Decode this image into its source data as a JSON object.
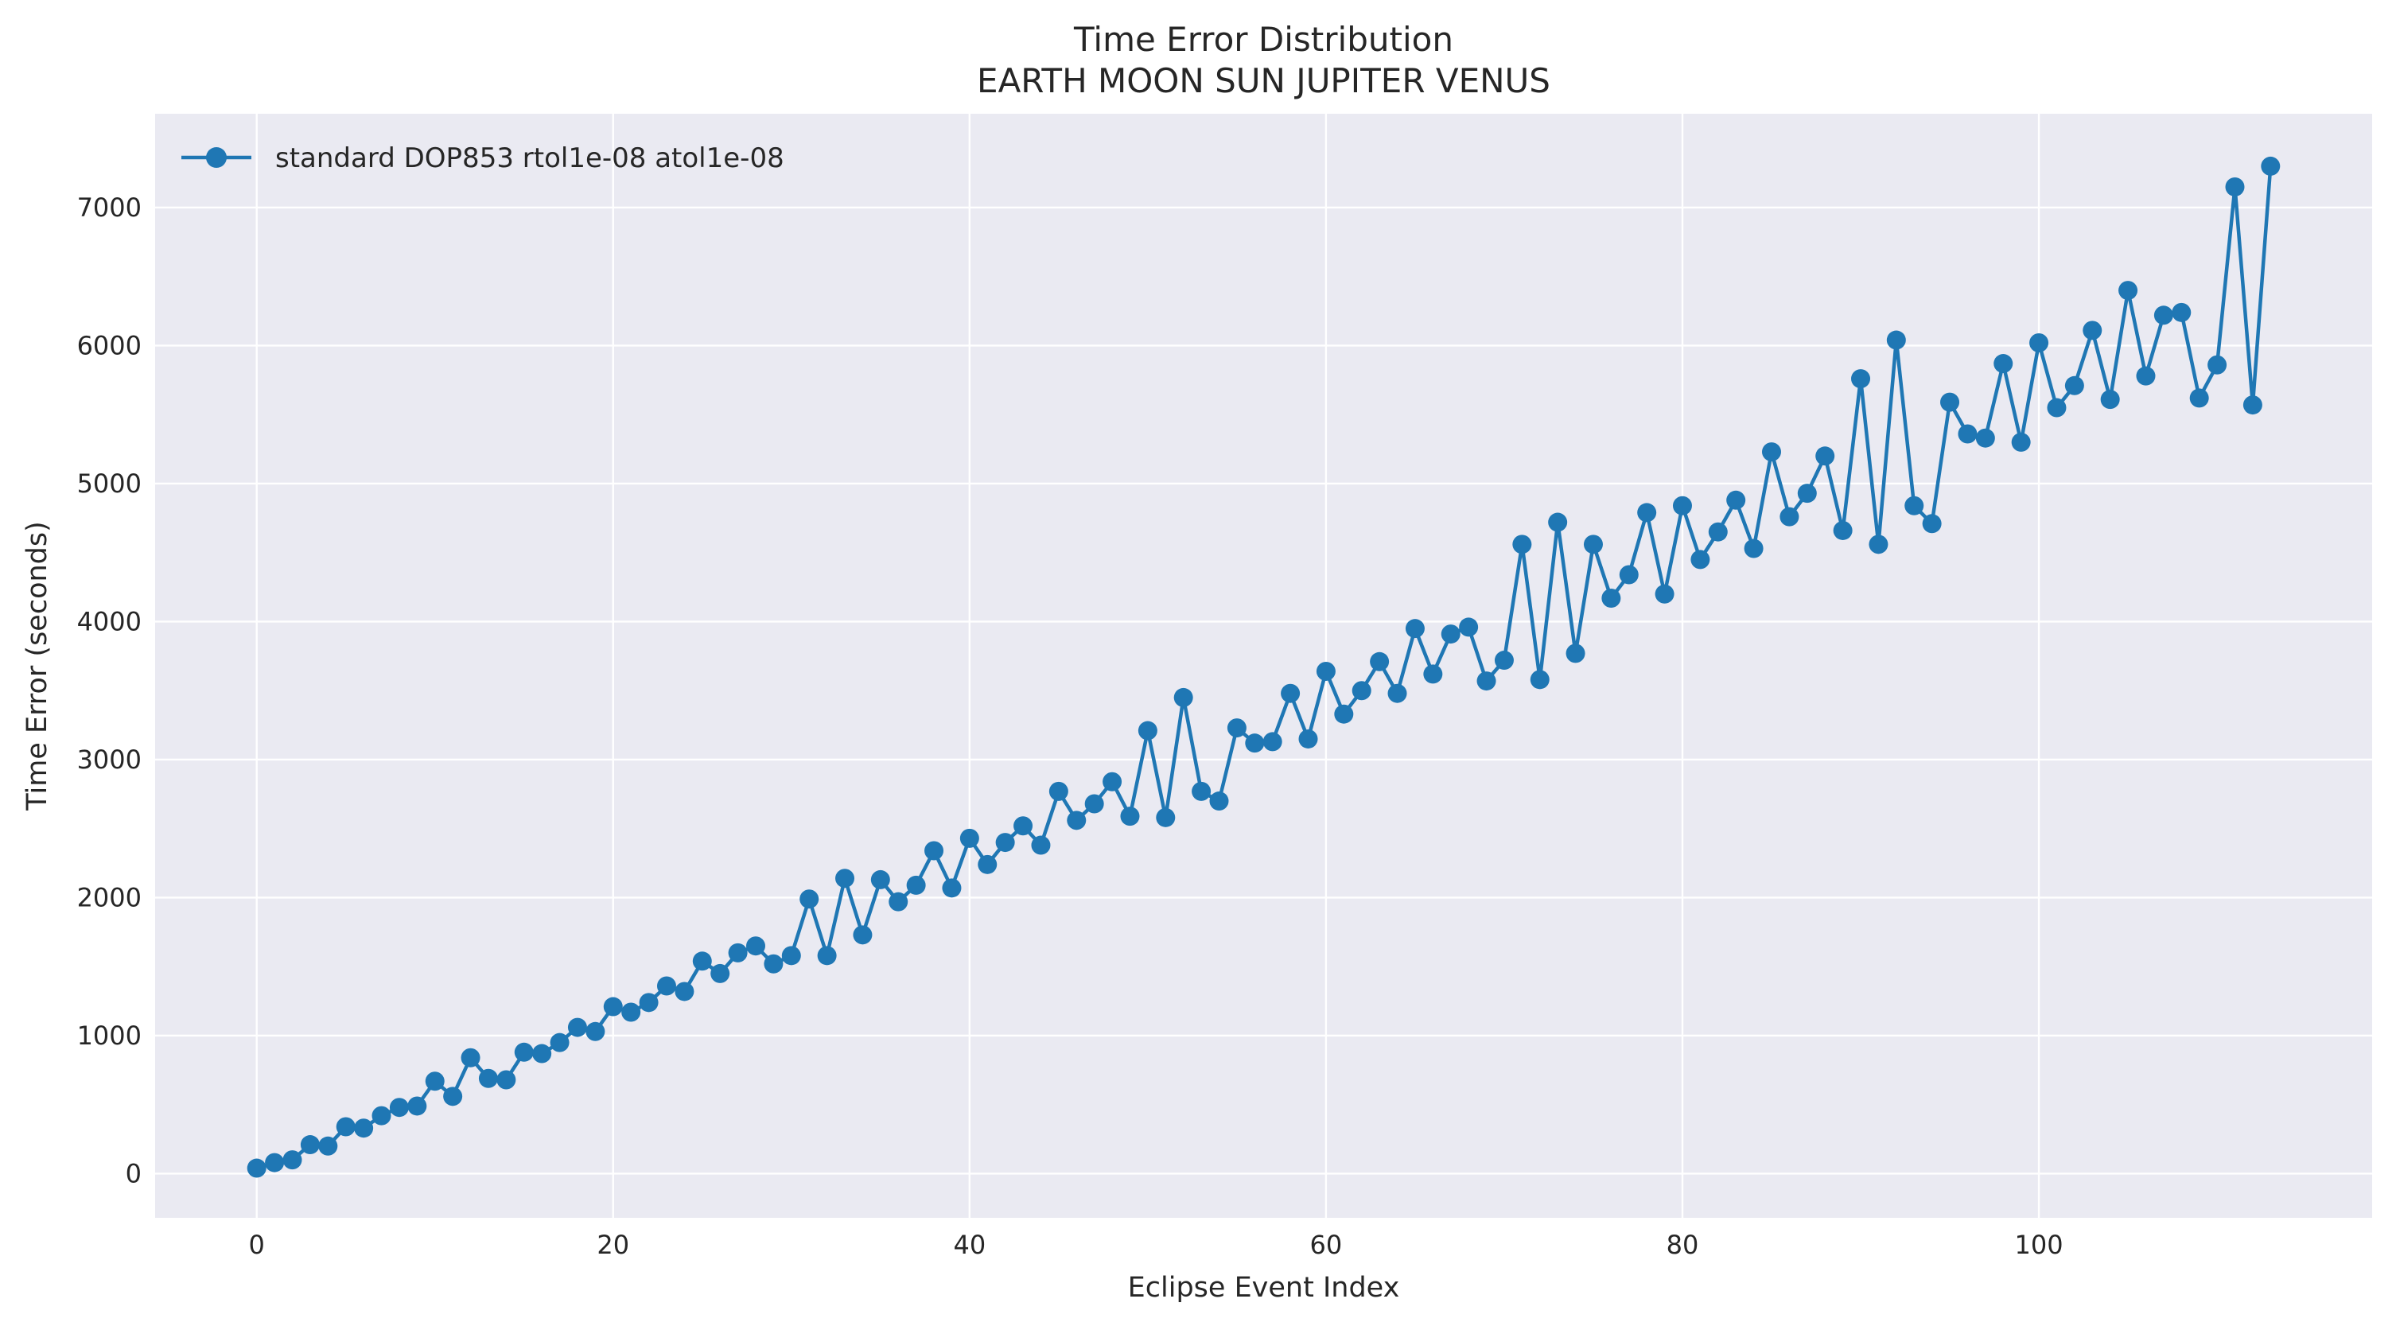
{
  "chart_data": {
    "type": "line",
    "title": "Time Error Distribution",
    "subtitle": "EARTH MOON SUN JUPITER VENUS",
    "xlabel": "Eclipse Event Index",
    "ylabel": "Time Error (seconds)",
    "xlim": [
      -5.7,
      118.7
    ],
    "ylim": [
      -320,
      7680
    ],
    "xticks": [
      0,
      20,
      40,
      60,
      80,
      100
    ],
    "yticks": [
      0,
      1000,
      2000,
      3000,
      4000,
      5000,
      6000,
      7000
    ],
    "grid": true,
    "legend_position": "top-left",
    "colors": {
      "series": "#1f77b4",
      "plot_background": "#eaeaf2",
      "grid": "#ffffff"
    },
    "series": [
      {
        "name": "standard DOP853 rtol1e-08 atol1e-08",
        "marker": "circle",
        "x": [
          0,
          1,
          2,
          3,
          4,
          5,
          6,
          7,
          8,
          9,
          10,
          11,
          12,
          13,
          14,
          15,
          16,
          17,
          18,
          19,
          20,
          21,
          22,
          23,
          24,
          25,
          26,
          27,
          28,
          29,
          30,
          31,
          32,
          33,
          34,
          35,
          36,
          37,
          38,
          39,
          40,
          41,
          42,
          43,
          44,
          45,
          46,
          47,
          48,
          49,
          50,
          51,
          52,
          53,
          54,
          55,
          56,
          57,
          58,
          59,
          60,
          61,
          62,
          63,
          64,
          65,
          66,
          67,
          68,
          69,
          70,
          71,
          72,
          73,
          74,
          75,
          76,
          77,
          78,
          79,
          80,
          81,
          82,
          83,
          84,
          85,
          86,
          87,
          88,
          89,
          90,
          91,
          92,
          93,
          94,
          95,
          96,
          97,
          98,
          99,
          100,
          101,
          102,
          103,
          104,
          105,
          106,
          107,
          108,
          109,
          110,
          111,
          112,
          113
        ],
        "y": [
          40,
          80,
          100,
          210,
          200,
          340,
          330,
          420,
          480,
          490,
          670,
          560,
          840,
          690,
          680,
          880,
          870,
          950,
          1060,
          1030,
          1210,
          1170,
          1240,
          1360,
          1320,
          1540,
          1450,
          1600,
          1650,
          1520,
          1580,
          1990,
          1580,
          2140,
          1730,
          2130,
          1970,
          2090,
          2340,
          2070,
          2430,
          2240,
          2400,
          2520,
          2380,
          2770,
          2560,
          2680,
          2840,
          2590,
          3210,
          2580,
          3450,
          2770,
          2700,
          3230,
          3120,
          3130,
          3480,
          3150,
          3640,
          3330,
          3500,
          3710,
          3480,
          3950,
          3620,
          3910,
          3960,
          3570,
          3720,
          4560,
          3580,
          4720,
          3770,
          4560,
          4170,
          4340,
          4790,
          4200,
          4840,
          4450,
          4650,
          4880,
          4530,
          5230,
          4760,
          4930,
          5200,
          4660,
          5760,
          4560,
          6040,
          4840,
          4710,
          5590,
          5360,
          5330,
          5870,
          5300,
          6020,
          5550,
          5710,
          6110,
          5610,
          6400,
          5780,
          6220,
          6240,
          5620,
          5860,
          7150,
          5570,
          7300
        ]
      }
    ]
  }
}
